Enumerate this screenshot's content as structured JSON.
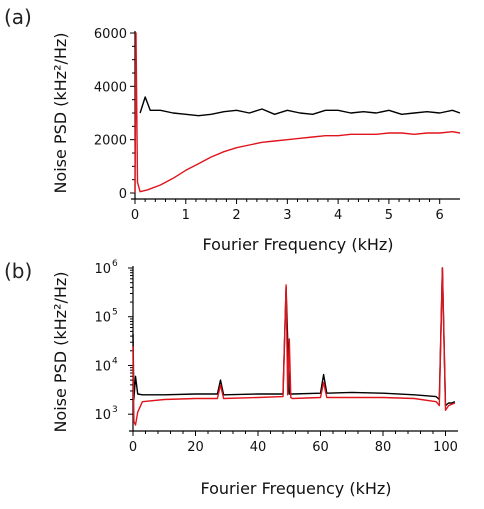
{
  "chart_data": [
    {
      "type": "line",
      "panel_label": "(a)",
      "xlabel": "Fourier Frequency (kHz)",
      "ylabel": "Noise PSD (kHz²/Hz)",
      "xlim": [
        0,
        6.4
      ],
      "ylim": [
        0,
        6000
      ],
      "yscale": "linear",
      "xticks": [
        0,
        1,
        2,
        3,
        4,
        5,
        6
      ],
      "yticks": [
        0,
        2000,
        4000,
        6000
      ],
      "grid": false,
      "legend": "none",
      "series": [
        {
          "color": "#000000",
          "x": [
            0.1,
            0.2,
            0.3,
            0.5,
            0.75,
            1.0,
            1.25,
            1.5,
            1.75,
            2.0,
            2.25,
            2.5,
            2.75,
            3.0,
            3.25,
            3.5,
            3.75,
            4.0,
            4.25,
            4.5,
            4.75,
            5.0,
            5.25,
            5.5,
            5.75,
            6.0,
            6.25,
            6.4
          ],
          "y": [
            3000,
            3600,
            3100,
            3100,
            3000,
            2950,
            2900,
            2950,
            3050,
            3100,
            3000,
            3150,
            2950,
            3100,
            3000,
            2950,
            3100,
            3100,
            3000,
            3050,
            3000,
            3100,
            2950,
            3000,
            3050,
            3000,
            3100,
            3000
          ]
        },
        {
          "color": "#e0141c",
          "x": [
            0,
            0.02,
            0.05,
            0.1,
            0.25,
            0.5,
            0.75,
            1.0,
            1.25,
            1.5,
            1.75,
            2.0,
            2.25,
            2.5,
            2.75,
            3.0,
            3.25,
            3.5,
            3.75,
            4.0,
            4.25,
            4.5,
            4.75,
            5.0,
            5.25,
            5.5,
            5.75,
            6.0,
            6.25,
            6.4
          ],
          "y": [
            0,
            6000,
            400,
            50,
            120,
            300,
            550,
            850,
            1100,
            1350,
            1550,
            1700,
            1800,
            1900,
            1950,
            2000,
            2050,
            2100,
            2150,
            2150,
            2200,
            2200,
            2200,
            2250,
            2250,
            2200,
            2250,
            2250,
            2300,
            2250
          ]
        }
      ]
    },
    {
      "type": "line",
      "panel_label": "(b)",
      "xlabel": "Fourier Frequency (kHz)",
      "ylabel": "Noise PSD (kHz²/Hz)",
      "xlim": [
        0,
        104
      ],
      "ylim": [
        600,
        1000000
      ],
      "yscale": "log",
      "xticks": [
        0,
        20,
        40,
        60,
        80,
        100
      ],
      "yticks": [
        {
          "value": 1000,
          "base": "10",
          "exp": "3"
        },
        {
          "value": 10000,
          "base": "10",
          "exp": "4"
        },
        {
          "value": 100000,
          "base": "10",
          "exp": "5"
        },
        {
          "value": 1000000,
          "base": "10",
          "exp": "6"
        }
      ],
      "grid": false,
      "legend": "none",
      "series": [
        {
          "color": "#000000",
          "x": [
            0,
            0.3,
            0.8,
            1.5,
            3,
            10,
            20,
            27,
            28,
            29,
            40,
            48,
            49,
            50,
            51,
            60,
            61,
            62,
            70,
            80,
            90,
            97,
            98,
            99,
            100,
            101,
            102,
            103
          ],
          "y": [
            45000,
            2000,
            6000,
            2600,
            2500,
            2500,
            2600,
            2600,
            5000,
            2500,
            2600,
            2600,
            400000,
            2600,
            2600,
            2700,
            6500,
            2700,
            2800,
            2700,
            2500,
            2300,
            2000,
            1000000,
            1500,
            1700,
            1700,
            1800
          ]
        },
        {
          "color": "#e0141c",
          "x": [
            0,
            0.3,
            0.8,
            1.5,
            3,
            10,
            20,
            27,
            28,
            29,
            40,
            48,
            49,
            49.5,
            50,
            50.5,
            51,
            60,
            61,
            62,
            70,
            80,
            90,
            97,
            98,
            99,
            100,
            101,
            102,
            103
          ],
          "y": [
            25000,
            700,
            500,
            1100,
            1800,
            2000,
            2100,
            2100,
            4000,
            2100,
            2200,
            2300,
            450000,
            2500,
            35000,
            2200,
            2100,
            2200,
            4500,
            2200,
            2200,
            2200,
            2100,
            1800,
            1500,
            1000000,
            1200,
            1500,
            1600,
            1700
          ]
        }
      ]
    }
  ]
}
